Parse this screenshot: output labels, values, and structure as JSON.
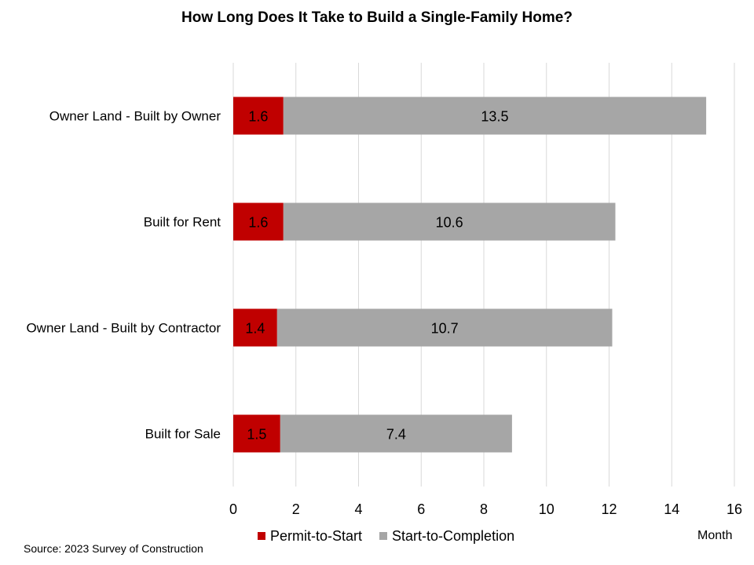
{
  "title": "How Long Does It Take to Build  a Single-Family  Home?",
  "source": "Source: 2023 Survey of Construction",
  "unit_label": "Month",
  "colors": {
    "permit": "#C00000",
    "completion": "#A6A6A6",
    "grid": "#D9D9D9"
  },
  "legend": [
    {
      "label": "Permit-to-Start",
      "color": "#C00000"
    },
    {
      "label": "Start-to-Completion",
      "color": "#A6A6A6"
    }
  ],
  "chart_data": {
    "type": "bar",
    "orientation": "horizontal",
    "stacked": true,
    "title": "How Long Does It Take to Build  a Single-Family  Home?",
    "categories": [
      "Owner Land - Built by Owner",
      "Built for Rent",
      "Owner Land - Built by Contractor",
      "Built for Sale"
    ],
    "series": [
      {
        "name": "Permit-to-Start",
        "values": [
          1.6,
          1.6,
          1.4,
          1.5
        ]
      },
      {
        "name": "Start-to-Completion",
        "values": [
          13.5,
          10.6,
          10.7,
          7.4
        ]
      }
    ],
    "xlim": [
      0,
      16
    ],
    "xticks": [
      0,
      2,
      4,
      6,
      8,
      10,
      12,
      14,
      16
    ],
    "xlabel": "Month",
    "grid": "vertical",
    "legend_position": "bottom"
  }
}
